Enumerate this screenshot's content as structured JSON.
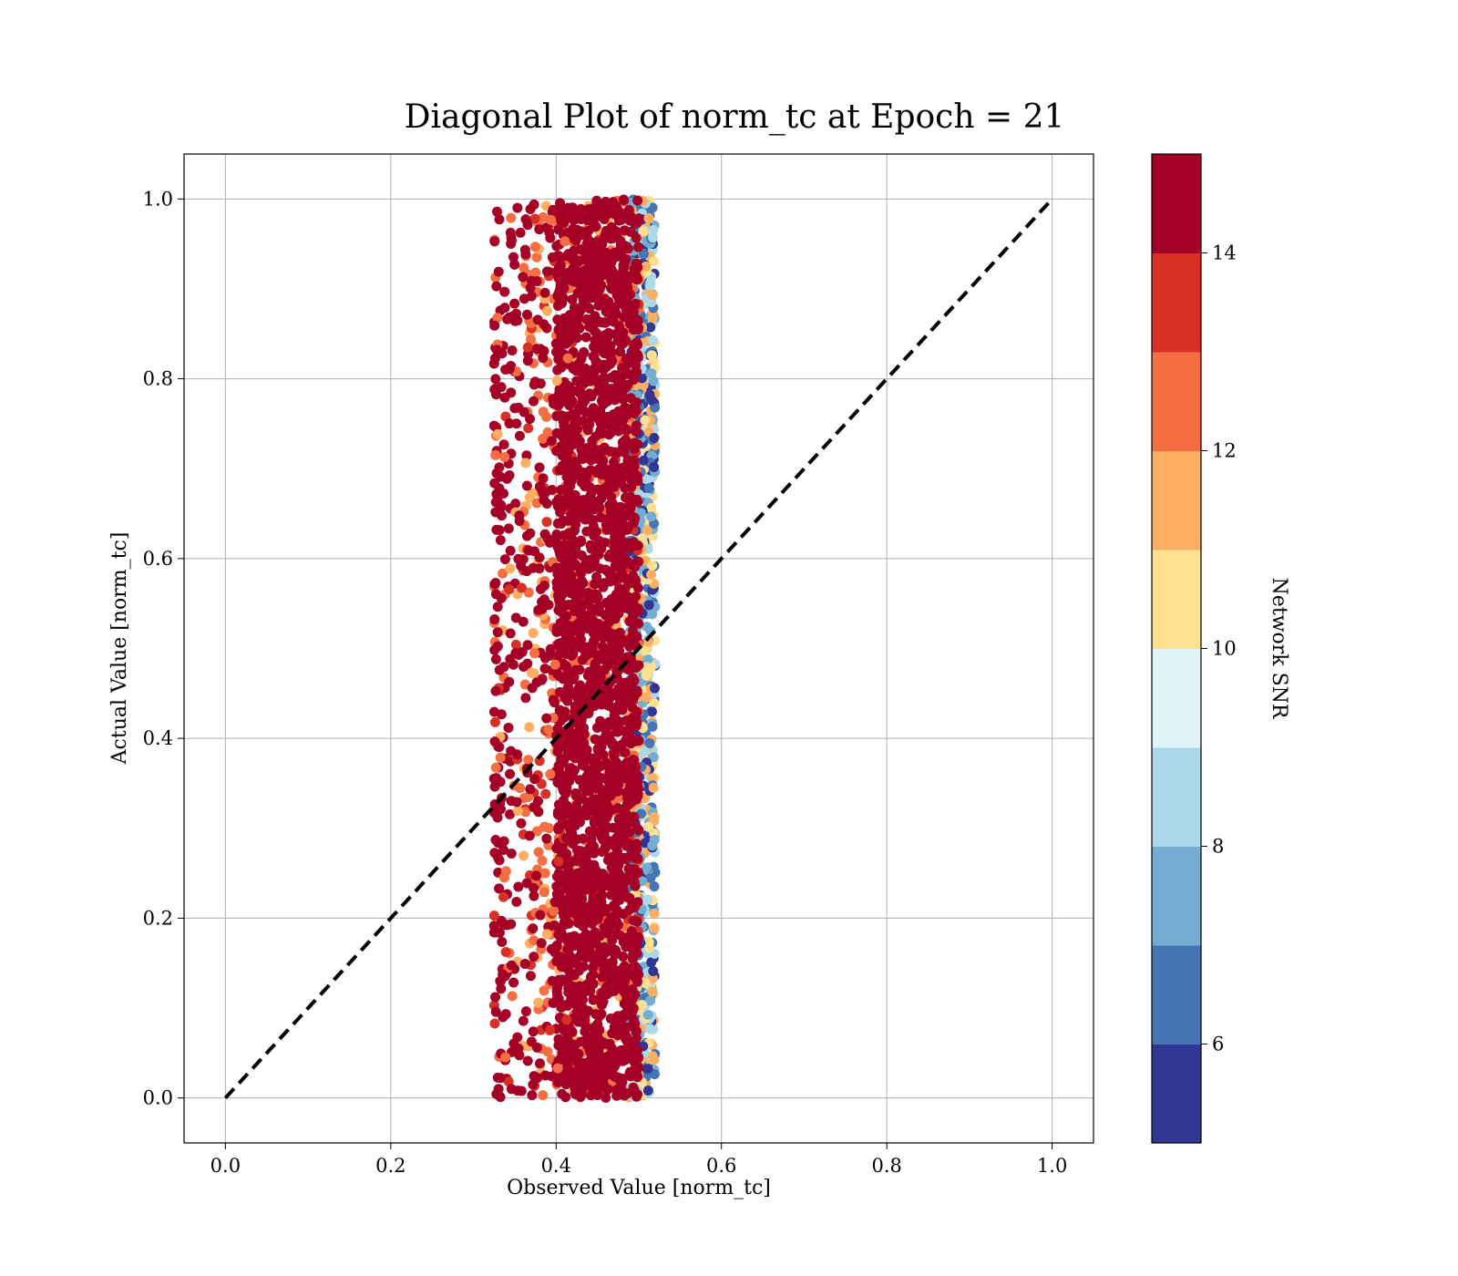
{
  "chart_data": {
    "type": "scatter",
    "title": "Diagonal Plot of norm_tc at Epoch = 21",
    "xlabel": "Observed Value [norm_tc]",
    "ylabel": "Actual Value [norm_tc]",
    "xlim": [
      -0.05,
      1.05
    ],
    "ylim": [
      -0.05,
      1.05
    ],
    "xticks": [
      "0.0",
      "0.2",
      "0.4",
      "0.6",
      "0.8",
      "1.0"
    ],
    "yticks": [
      "0.0",
      "0.2",
      "0.4",
      "0.6",
      "0.8",
      "1.0"
    ],
    "grid": true,
    "reference_line": {
      "style": "dashed",
      "color": "#000000",
      "from": [
        0,
        0
      ],
      "to": [
        1,
        1
      ]
    },
    "scatter_cloud": {
      "x_core_range": [
        0.4,
        0.5
      ],
      "x_outlier_range": [
        0.31,
        0.52
      ],
      "y_range": [
        0.0,
        1.0
      ],
      "dominant_color": "#a50026",
      "edge_colors": [
        "#fdae61",
        "#fee090",
        "#abd9e9",
        "#74add1",
        "#4575b4",
        "#313695"
      ]
    },
    "colorbar": {
      "label": "Network SNR",
      "range": [
        5,
        15
      ],
      "ticks": [
        "6",
        "8",
        "10",
        "12",
        "14"
      ],
      "tick_values": [
        6,
        8,
        10,
        12,
        14
      ],
      "colors": [
        "#313695",
        "#4575b4",
        "#74add1",
        "#abd9e9",
        "#e0f3f8",
        "#fee090",
        "#fdae61",
        "#f46d43",
        "#d73027",
        "#a50026"
      ]
    }
  }
}
